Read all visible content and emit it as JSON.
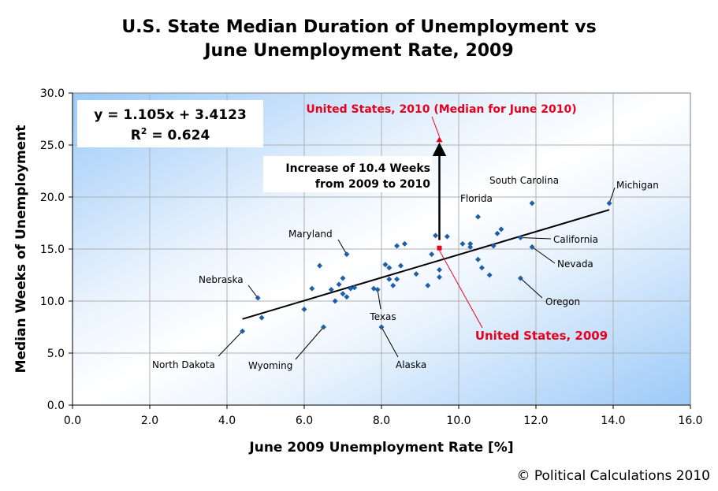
{
  "chart_data": {
    "type": "scatter",
    "title": "U.S. State Median Duration of Unemployment vs",
    "title_line2": "June Unemployment Rate, 2009",
    "xlabel": "June 2009 Unemployment Rate [%]",
    "ylabel": "Median Weeks of Unemployment",
    "xlim": [
      0,
      16
    ],
    "ylim": [
      0,
      30
    ],
    "xticks": [
      0,
      2,
      4,
      6,
      8,
      10,
      12,
      14,
      16
    ],
    "xtick_labels": [
      "0.0",
      "2.0",
      "4.0",
      "6.0",
      "8.0",
      "10.0",
      "12.0",
      "14.0",
      "16.0"
    ],
    "yticks": [
      0,
      5,
      10,
      15,
      20,
      25,
      30
    ],
    "ytick_labels": [
      "0.0",
      "5.0",
      "10.0",
      "15.0",
      "20.0",
      "25.0",
      "30.0"
    ],
    "grid": true,
    "marker_color": "#1f5fa8",
    "states": [
      {
        "x": 4.4,
        "y": 7.1
      },
      {
        "x": 4.8,
        "y": 10.3
      },
      {
        "x": 4.9,
        "y": 8.4
      },
      {
        "x": 6.0,
        "y": 9.2
      },
      {
        "x": 6.2,
        "y": 11.2
      },
      {
        "x": 6.4,
        "y": 13.4
      },
      {
        "x": 6.5,
        "y": 7.5
      },
      {
        "x": 6.7,
        "y": 11.1
      },
      {
        "x": 6.8,
        "y": 10.0
      },
      {
        "x": 6.9,
        "y": 11.6
      },
      {
        "x": 7.0,
        "y": 12.2
      },
      {
        "x": 7.0,
        "y": 10.7
      },
      {
        "x": 7.1,
        "y": 14.5
      },
      {
        "x": 7.1,
        "y": 10.4
      },
      {
        "x": 7.2,
        "y": 11.2
      },
      {
        "x": 7.3,
        "y": 11.3
      },
      {
        "x": 7.8,
        "y": 11.2
      },
      {
        "x": 7.9,
        "y": 11.1
      },
      {
        "x": 8.0,
        "y": 7.5
      },
      {
        "x": 8.1,
        "y": 13.5
      },
      {
        "x": 8.2,
        "y": 13.2
      },
      {
        "x": 8.2,
        "y": 12.1
      },
      {
        "x": 8.3,
        "y": 11.5
      },
      {
        "x": 8.4,
        "y": 12.1
      },
      {
        "x": 8.4,
        "y": 15.3
      },
      {
        "x": 8.5,
        "y": 13.4
      },
      {
        "x": 8.6,
        "y": 15.5
      },
      {
        "x": 8.9,
        "y": 12.6
      },
      {
        "x": 9.2,
        "y": 11.5
      },
      {
        "x": 9.3,
        "y": 14.5
      },
      {
        "x": 9.4,
        "y": 16.3
      },
      {
        "x": 9.5,
        "y": 13.0
      },
      {
        "x": 9.5,
        "y": 12.3
      },
      {
        "x": 9.7,
        "y": 16.2
      },
      {
        "x": 10.1,
        "y": 15.5
      },
      {
        "x": 10.3,
        "y": 15.2
      },
      {
        "x": 10.3,
        "y": 15.5
      },
      {
        "x": 10.5,
        "y": 14.0
      },
      {
        "x": 10.5,
        "y": 18.1
      },
      {
        "x": 10.6,
        "y": 13.2
      },
      {
        "x": 10.8,
        "y": 12.5
      },
      {
        "x": 10.9,
        "y": 15.3
      },
      {
        "x": 11.0,
        "y": 16.5
      },
      {
        "x": 11.1,
        "y": 16.9
      },
      {
        "x": 11.6,
        "y": 16.1
      },
      {
        "x": 11.6,
        "y": 12.2
      },
      {
        "x": 11.9,
        "y": 19.4
      },
      {
        "x": 11.9,
        "y": 15.2
      },
      {
        "x": 13.9,
        "y": 19.4
      }
    ],
    "us_2009": {
      "x": 9.5,
      "y": 15.1,
      "label": "United States, 2009",
      "color": "#e8001c"
    },
    "us_2010": {
      "x": 9.5,
      "y": 25.5,
      "label": "United States, 2010 (Median for June 2010)",
      "color": "#e8001c"
    },
    "trendline": {
      "x": [
        4.4,
        13.9
      ],
      "slope": 1.105,
      "intercept": 3.4123
    },
    "equation": "y = 1.105x + 3.4123",
    "r2_prefix": "R",
    "r2_sup": "2",
    "r2_value": " = 0.624",
    "increase_line1": "Increase of 10.4 Weeks",
    "increase_line2": "from 2009 to 2010",
    "annotations": [
      {
        "text": "Michigan",
        "x": 13.9,
        "y": 19.4
      },
      {
        "text": "South Carolina",
        "x": 11.9,
        "y": 19.4
      },
      {
        "text": "Florida",
        "x": 10.5,
        "y": 18.1
      },
      {
        "text": "California",
        "x": 11.6,
        "y": 16.1
      },
      {
        "text": "Nevada",
        "x": 11.9,
        "y": 15.2
      },
      {
        "text": "Oregon",
        "x": 11.6,
        "y": 12.2
      },
      {
        "text": "Maryland",
        "x": 7.1,
        "y": 14.5
      },
      {
        "text": "Nebraska",
        "x": 4.8,
        "y": 10.3
      },
      {
        "text": "Texas",
        "x": 7.9,
        "y": 11.1
      },
      {
        "text": "Alaska",
        "x": 8.0,
        "y": 7.5
      },
      {
        "text": "Wyoming",
        "x": 6.5,
        "y": 7.5
      },
      {
        "text": "North Dakota",
        "x": 4.4,
        "y": 7.1
      }
    ]
  },
  "copyright": "© Political Calculations 2010"
}
